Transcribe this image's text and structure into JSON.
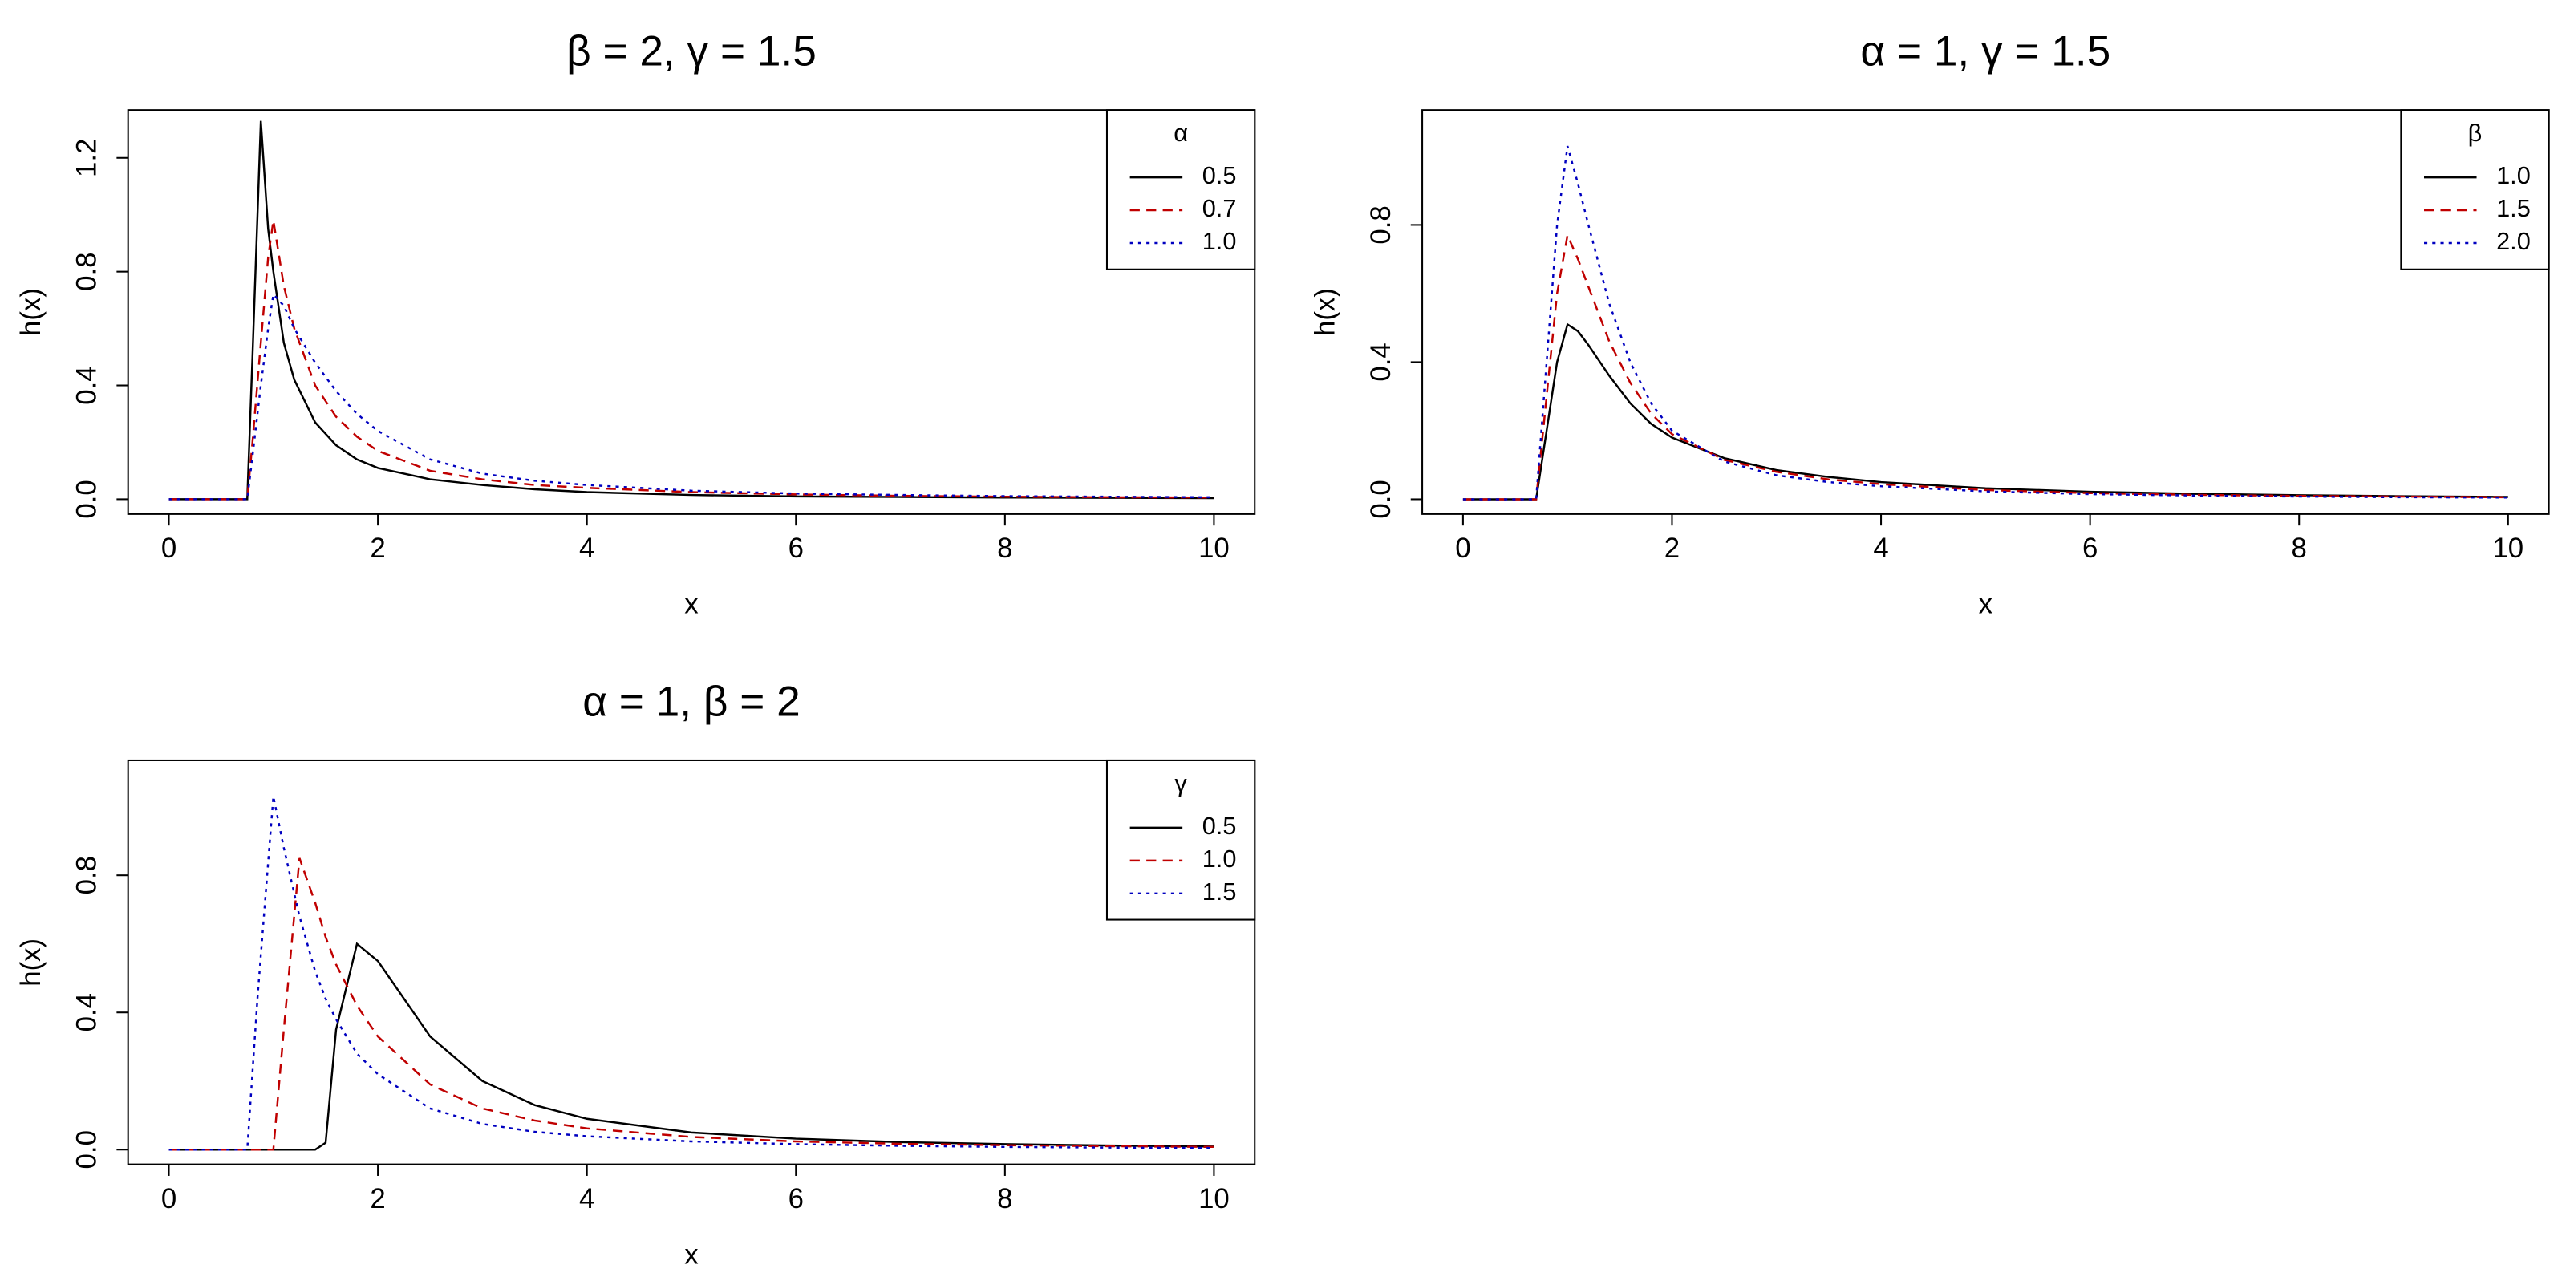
{
  "chart_data": [
    {
      "type": "line",
      "title": "β = 2, γ = 1.5",
      "x_label": "x",
      "y_label": "h(x)",
      "legend_title": "α",
      "legend": "topright",
      "xlim": [
        -0.39,
        10.39
      ],
      "ylim": [
        -0.052,
        1.368
      ],
      "xticks": [
        0,
        2,
        4,
        6,
        8,
        10
      ],
      "yticks": [
        {
          "value": 0,
          "label": "0.0"
        },
        {
          "value": 0.4,
          "label": "0.4"
        },
        {
          "value": 0.8,
          "label": "0.8"
        },
        {
          "value": 1.2,
          "label": "1.2"
        }
      ],
      "x": [
        0,
        0.5,
        0.75,
        0.8,
        0.88,
        0.95,
        1,
        1.1,
        1.2,
        1.4,
        1.6,
        1.8,
        2,
        2.5,
        3,
        3.5,
        4,
        5,
        6,
        7,
        8,
        9,
        10
      ],
      "series": [
        {
          "name": "0.5",
          "color": "#000000",
          "dash": "solid",
          "values": [
            0,
            0,
            0,
            0.5,
            1.33,
            0.95,
            0.8,
            0.55,
            0.42,
            0.27,
            0.19,
            0.14,
            0.11,
            0.07,
            0.05,
            0.035,
            0.025,
            0.015,
            0.01,
            0.008,
            0.006,
            0.005,
            0.004
          ]
        },
        {
          "name": "0.7",
          "color": "#c00000",
          "dash": "dashed",
          "values": [
            0,
            0,
            0,
            0.2,
            0.55,
            0.85,
            0.98,
            0.75,
            0.6,
            0.4,
            0.29,
            0.22,
            0.17,
            0.1,
            0.07,
            0.05,
            0.04,
            0.025,
            0.017,
            0.012,
            0.009,
            0.007,
            0.006
          ]
        },
        {
          "name": "1.0",
          "color": "#0000c0",
          "dash": "dotted",
          "values": [
            0,
            0,
            0,
            0.15,
            0.4,
            0.6,
            0.72,
            0.68,
            0.6,
            0.48,
            0.38,
            0.3,
            0.24,
            0.14,
            0.09,
            0.065,
            0.05,
            0.03,
            0.02,
            0.015,
            0.011,
            0.009,
            0.007
          ]
        }
      ]
    },
    {
      "type": "line",
      "title": "α = 1, γ = 1.5",
      "x_label": "x",
      "y_label": "h(x)",
      "legend_title": "β",
      "legend": "topright",
      "xlim": [
        -0.39,
        10.39
      ],
      "ylim": [
        -0.043,
        1.135
      ],
      "xticks": [
        0,
        2,
        4,
        6,
        8,
        10
      ],
      "yticks": [
        {
          "value": 0,
          "label": "0.0"
        },
        {
          "value": 0.4,
          "label": "0.4"
        },
        {
          "value": 0.8,
          "label": "0.8"
        }
      ],
      "x": [
        0,
        0.5,
        0.7,
        0.8,
        0.9,
        1,
        1.1,
        1.2,
        1.4,
        1.6,
        1.8,
        2,
        2.5,
        3,
        3.5,
        4,
        5,
        6,
        7,
        8,
        9,
        10
      ],
      "series": [
        {
          "name": "1.0",
          "color": "#000000",
          "dash": "solid",
          "values": [
            0,
            0,
            0,
            0.2,
            0.4,
            0.51,
            0.49,
            0.45,
            0.36,
            0.28,
            0.22,
            0.18,
            0.12,
            0.085,
            0.065,
            0.05,
            0.032,
            0.022,
            0.016,
            0.012,
            0.009,
            0.007
          ]
        },
        {
          "name": "1.5",
          "color": "#c00000",
          "dash": "dashed",
          "values": [
            0,
            0,
            0,
            0.3,
            0.6,
            0.77,
            0.7,
            0.62,
            0.46,
            0.34,
            0.25,
            0.19,
            0.115,
            0.08,
            0.058,
            0.044,
            0.027,
            0.018,
            0.013,
            0.01,
            0.008,
            0.006
          ]
        },
        {
          "name": "2.0",
          "color": "#0000c0",
          "dash": "dotted",
          "values": [
            0,
            0,
            0,
            0.4,
            0.8,
            1.03,
            0.92,
            0.8,
            0.57,
            0.4,
            0.28,
            0.2,
            0.11,
            0.07,
            0.05,
            0.038,
            0.023,
            0.015,
            0.011,
            0.008,
            0.006,
            0.005
          ]
        }
      ]
    },
    {
      "type": "line",
      "title": "α = 1, β = 2",
      "x_label": "x",
      "y_label": "h(x)",
      "legend_title": "γ",
      "legend": "topright",
      "xlim": [
        -0.39,
        10.39
      ],
      "ylim": [
        -0.043,
        1.135
      ],
      "xticks": [
        0,
        2,
        4,
        6,
        8,
        10
      ],
      "yticks": [
        {
          "value": 0,
          "label": "0.0"
        },
        {
          "value": 0.4,
          "label": "0.4"
        },
        {
          "value": 0.8,
          "label": "0.8"
        }
      ],
      "x": [
        0,
        0.5,
        0.75,
        0.85,
        1,
        1.1,
        1.25,
        1.4,
        1.5,
        1.6,
        1.8,
        2,
        2.5,
        3,
        3.5,
        4,
        5,
        6,
        7,
        8,
        9,
        10
      ],
      "series": [
        {
          "name": "0.5",
          "color": "#000000",
          "dash": "solid",
          "values": [
            0,
            0,
            0,
            0,
            0,
            0,
            0,
            0,
            0.02,
            0.35,
            0.6,
            0.55,
            0.33,
            0.2,
            0.13,
            0.09,
            0.05,
            0.032,
            0.022,
            0.016,
            0.012,
            0.009
          ]
        },
        {
          "name": "1.0",
          "color": "#c00000",
          "dash": "dashed",
          "values": [
            0,
            0,
            0,
            0,
            0,
            0.35,
            0.85,
            0.72,
            0.62,
            0.54,
            0.42,
            0.33,
            0.19,
            0.12,
            0.085,
            0.062,
            0.037,
            0.024,
            0.017,
            0.013,
            0.01,
            0.008
          ]
        },
        {
          "name": "1.5",
          "color": "#0000c0",
          "dash": "dotted",
          "values": [
            0,
            0,
            0,
            0.45,
            1.03,
            0.88,
            0.68,
            0.52,
            0.44,
            0.38,
            0.28,
            0.22,
            0.12,
            0.075,
            0.052,
            0.039,
            0.024,
            0.016,
            0.011,
            0.008,
            0.006,
            0.005
          ]
        }
      ]
    }
  ]
}
